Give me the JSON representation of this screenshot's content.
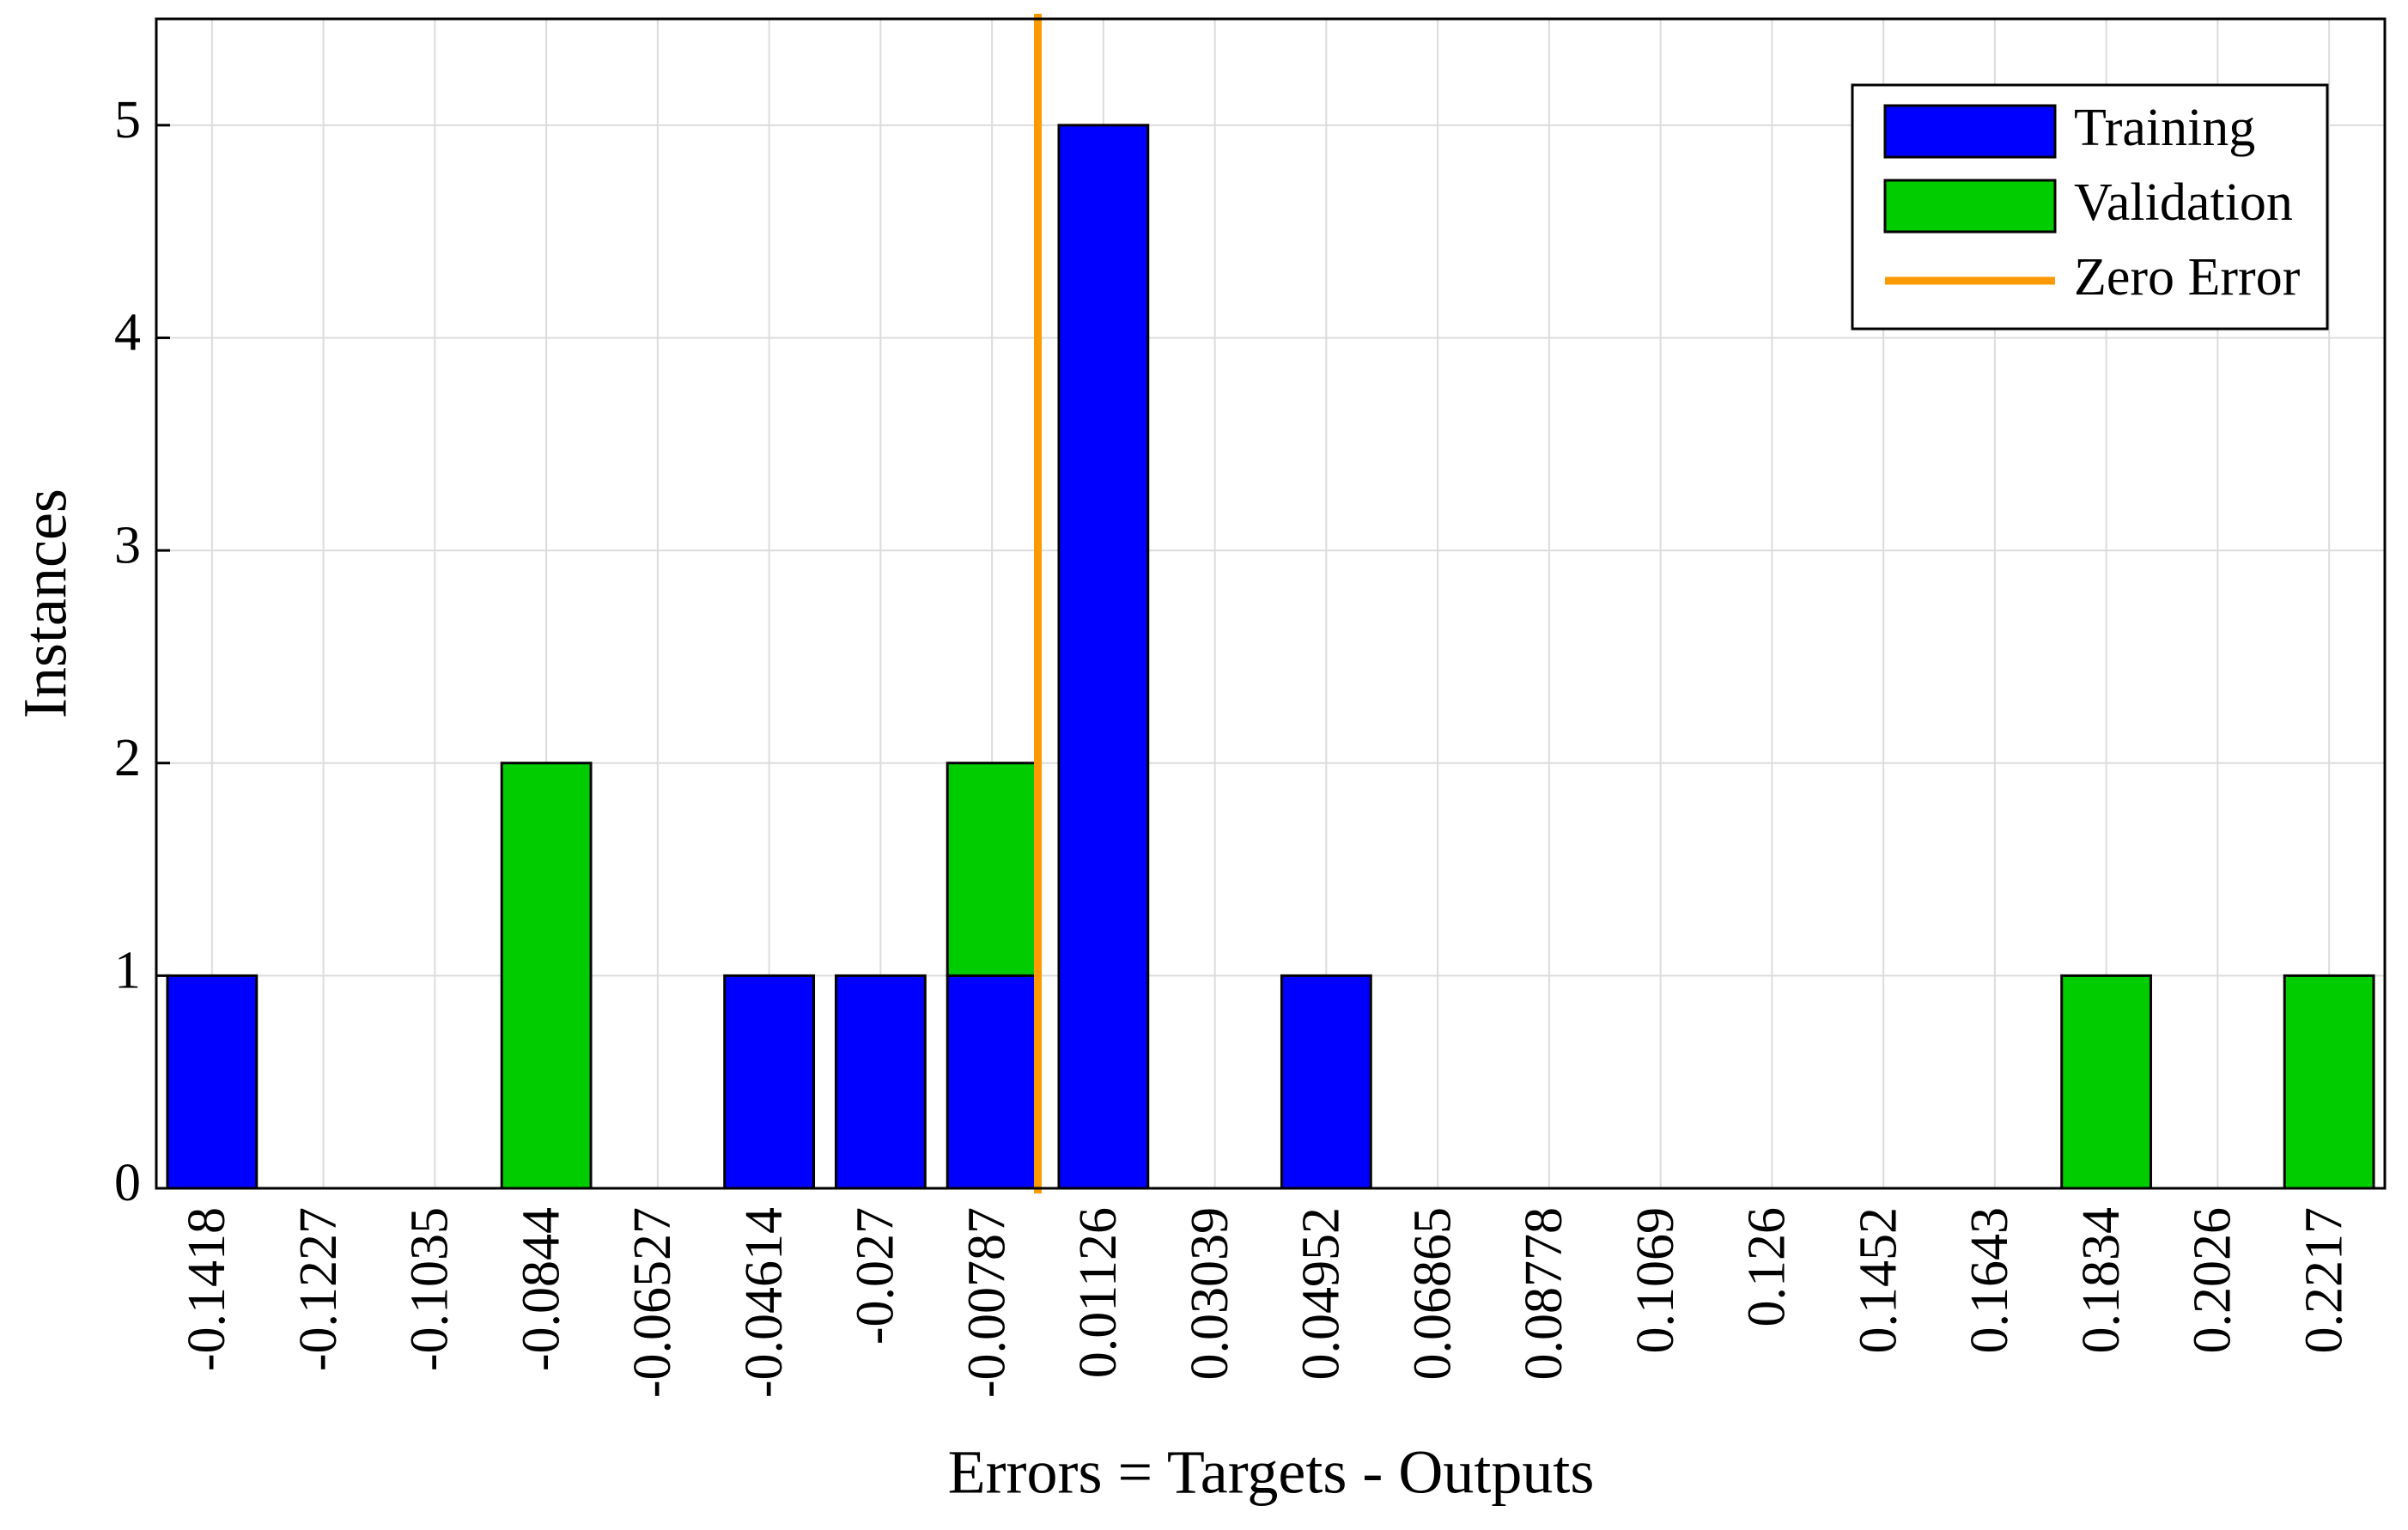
{
  "chart_data": {
    "type": "stacked-bar",
    "xlabel": "Errors = Targets - Outputs",
    "ylabel": "Instances",
    "categories": [
      "-0.1418",
      "-0.1227",
      "-0.1035",
      "-0.0844",
      "-0.06527",
      "-0.04614",
      "-0.027",
      "-0.00787",
      "0.01126",
      "0.03039",
      "0.04952",
      "0.06865",
      "0.08778",
      "0.1069",
      "0.126",
      "0.1452",
      "0.1643",
      "0.1834",
      "0.2026",
      "0.2217"
    ],
    "series": [
      {
        "name": "Training",
        "color": "#0000ff",
        "values": [
          1,
          0,
          0,
          0,
          0,
          1,
          1,
          1,
          5,
          0,
          1,
          0,
          0,
          0,
          0,
          0,
          0,
          0,
          0,
          0
        ]
      },
      {
        "name": "Validation",
        "color": "#00cc00",
        "values": [
          0,
          0,
          0,
          2,
          0,
          0,
          0,
          1,
          0,
          0,
          0,
          0,
          0,
          0,
          0,
          0,
          0,
          1,
          0,
          1
        ]
      }
    ],
    "zero_line": {
      "name": "Zero Error",
      "color": "#ff9900",
      "x": 0
    },
    "ylim": [
      0,
      5.5
    ],
    "yticks": [
      0,
      1,
      2,
      3,
      4,
      5
    ],
    "grid": true,
    "legend": "top-right"
  }
}
